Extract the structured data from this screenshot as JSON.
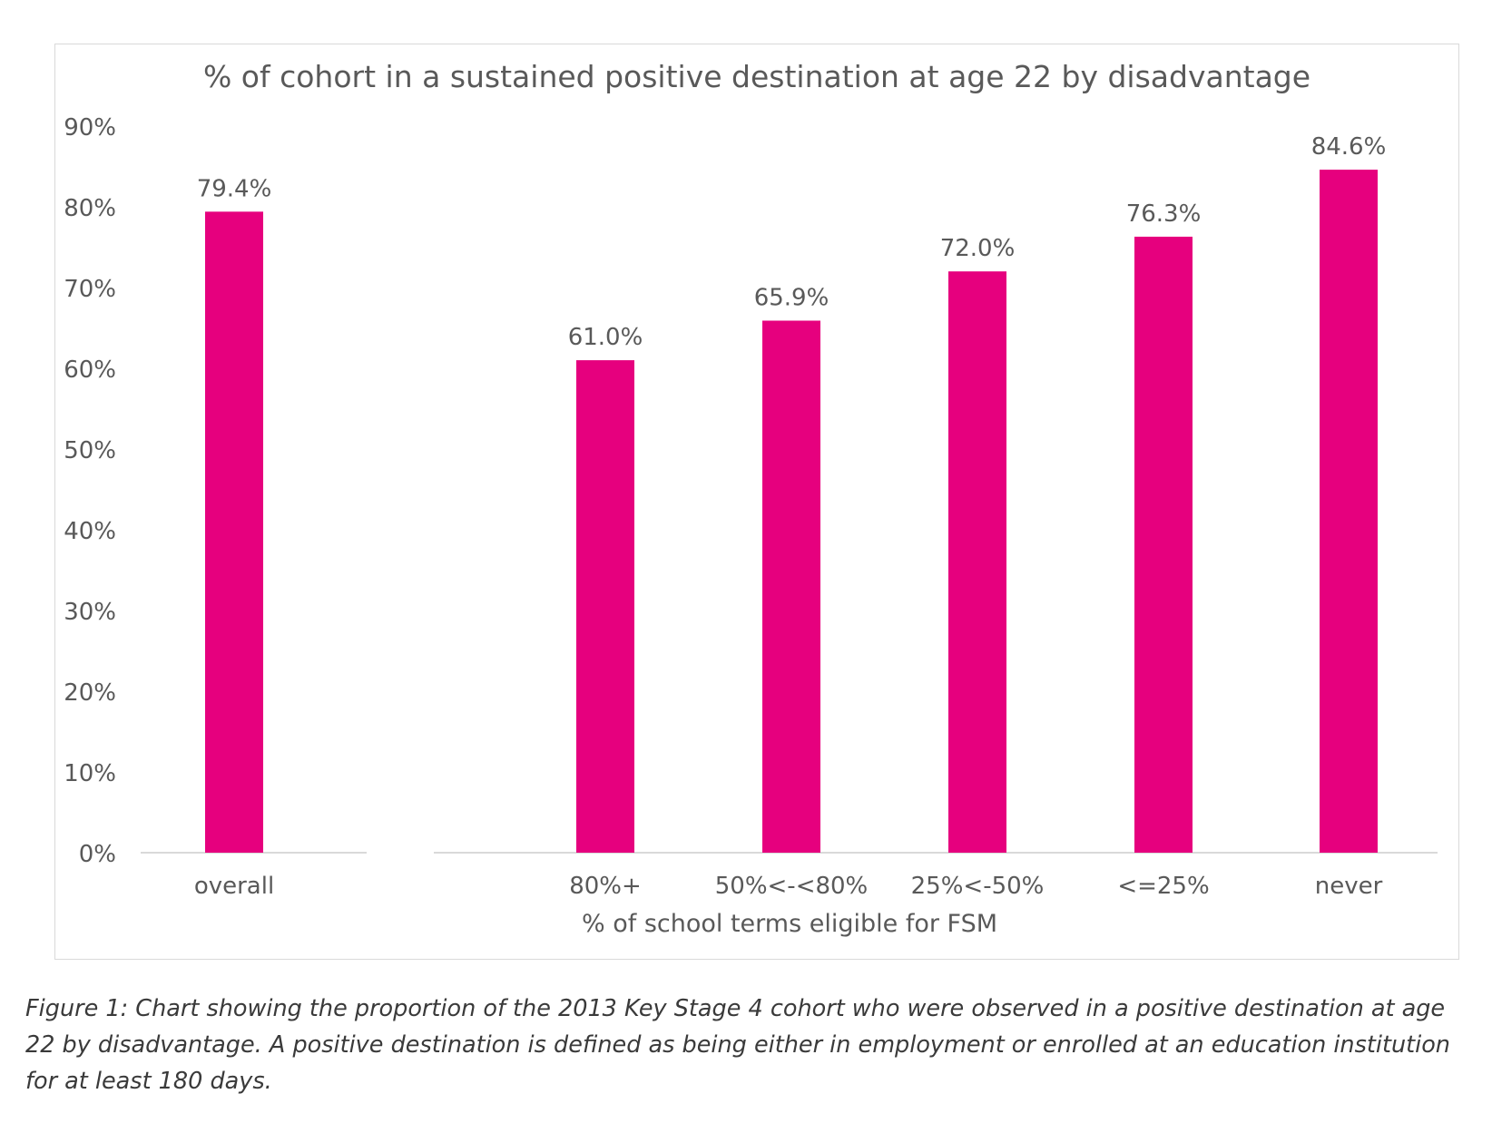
{
  "chart_data": {
    "type": "bar",
    "title": "% of cohort in a sustained positive destination at age 22 by disadvantage",
    "xlabel": "% of school terms eligible for FSM",
    "ylabel": "",
    "ylim": [
      0,
      90
    ],
    "yticks": [
      "0%",
      "10%",
      "20%",
      "30%",
      "40%",
      "50%",
      "60%",
      "70%",
      "80%",
      "90%"
    ],
    "categories": [
      "overall",
      "80%+",
      "50%<-<80%",
      "25%<-50%",
      "<=25%",
      "never"
    ],
    "values": [
      79.4,
      61.0,
      65.9,
      72.0,
      76.3,
      84.6
    ],
    "data_labels": [
      "79.4%",
      "61.0%",
      "65.9%",
      "72.0%",
      "76.3%",
      "84.6%"
    ],
    "bar_color": "#e6007e",
    "grid": false,
    "legend": "none"
  },
  "caption": "Figure 1: Chart showing the proportion of the 2013 Key Stage 4 cohort who were observed in a positive destination at age 22 by disadvantage. A positive destination is defined as being either in employment or enrolled at an education institution for at least 180 days."
}
